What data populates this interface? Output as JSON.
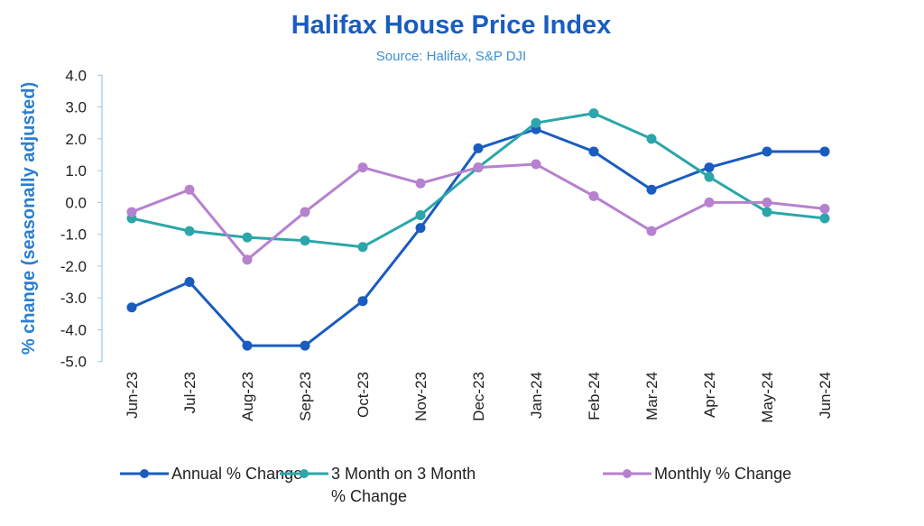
{
  "chart_data": {
    "type": "line",
    "title": "Halifax House Price Index",
    "subtitle": "Source: Halifax, S&P DJI",
    "xlabel": "",
    "ylabel": "% change (seasonally adjusted)",
    "ylim": [
      -5.0,
      4.0
    ],
    "yticks": [
      "4.0",
      "3.0",
      "2.0",
      "1.0",
      "0.0",
      "-1.0",
      "-2.0",
      "-3.0",
      "-4.0",
      "-5.0"
    ],
    "grid": false,
    "legend_position": "bottom",
    "categories": [
      "Jun-23",
      "Jul-23",
      "Aug-23",
      "Sep-23",
      "Oct-23",
      "Nov-23",
      "Dec-23",
      "Jan-24",
      "Feb-24",
      "Mar-24",
      "Apr-24",
      "May-24",
      "Jun-24"
    ],
    "series": [
      {
        "name": "Annual % Change",
        "color": "#1a5cbf",
        "values": [
          -3.3,
          -2.5,
          -4.5,
          -4.5,
          -3.1,
          -0.8,
          1.7,
          2.3,
          1.6,
          0.4,
          1.1,
          1.6,
          1.6
        ]
      },
      {
        "name": "3 Month on 3 Month % Change",
        "name_lines": [
          "3 Month on 3 Month",
          "% Change"
        ],
        "color": "#2ba6aa",
        "values": [
          -0.5,
          -0.9,
          -1.1,
          -1.2,
          -1.4,
          -0.4,
          1.1,
          2.5,
          2.8,
          2.0,
          0.8,
          -0.3,
          -0.5
        ]
      },
      {
        "name": "Monthly % Change",
        "color": "#b681cf",
        "values": [
          -0.3,
          0.4,
          -1.8,
          -0.3,
          1.1,
          0.6,
          1.1,
          1.2,
          0.2,
          -0.9,
          0.0,
          0.0,
          -0.2
        ]
      }
    ],
    "colors": {
      "title": "#1a5cbf",
      "subtitle": "#3d8fd6",
      "axis": "#9cc6e8",
      "ylabel": "#2a7fd0"
    }
  }
}
